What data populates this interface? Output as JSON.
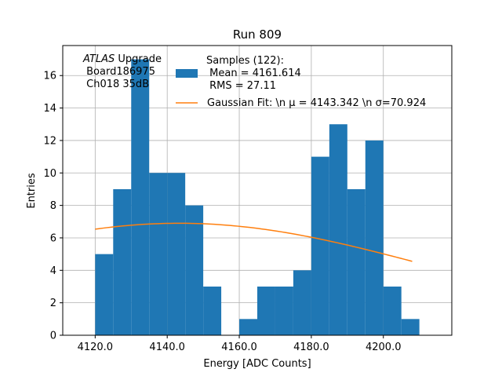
{
  "chart_data": {
    "type": "bar",
    "title": "Run 809",
    "xlabel": "Energy [ADC Counts]",
    "ylabel": "Entries",
    "xlim": [
      4111,
      4219
    ],
    "ylim": [
      0,
      17.85
    ],
    "xticks": [
      4120,
      4140,
      4160,
      4180,
      4200
    ],
    "xtick_labels": [
      "4120.0",
      "4140.0",
      "4160.0",
      "4180.0",
      "4200.0"
    ],
    "yticks": [
      0,
      2,
      4,
      6,
      8,
      10,
      12,
      14,
      16
    ],
    "ytick_labels": [
      "0",
      "2",
      "4",
      "6",
      "8",
      "10",
      "12",
      "14",
      "16"
    ],
    "grid": true,
    "bin_width": 5,
    "bin_starts": [
      4120,
      4125,
      4130,
      4135,
      4140,
      4145,
      4150,
      4155,
      4160,
      4165,
      4170,
      4175,
      4180,
      4185,
      4190,
      4195,
      4200,
      4205
    ],
    "values": [
      5,
      9,
      17,
      10,
      10,
      8,
      3,
      0,
      1,
      3,
      3,
      4,
      11,
      13,
      9,
      12,
      3,
      1
    ],
    "gaussian_fit": {
      "mu": 4143.342,
      "sigma": 70.924,
      "amplitude": 6.9,
      "x_start": 4120,
      "x_end": 4208
    },
    "legend": {
      "position": "top-center",
      "hist_label_lines": [
        "Samples (122):",
        " Mean = 4161.614",
        " RMS = 27.11"
      ],
      "fit_label": "Gaussian Fit: \\n μ = 4143.342 \\n σ=70.924"
    },
    "annotation": {
      "position": "top-left",
      "atlas": "ATLAS",
      "upgrade": " Upgrade",
      "lines": [
        " Board186975",
        " Ch018 35dB"
      ]
    },
    "colors": {
      "hist": "#1f77b4",
      "fit": "#ff7f0e",
      "grid": "#b0b0b0"
    }
  }
}
